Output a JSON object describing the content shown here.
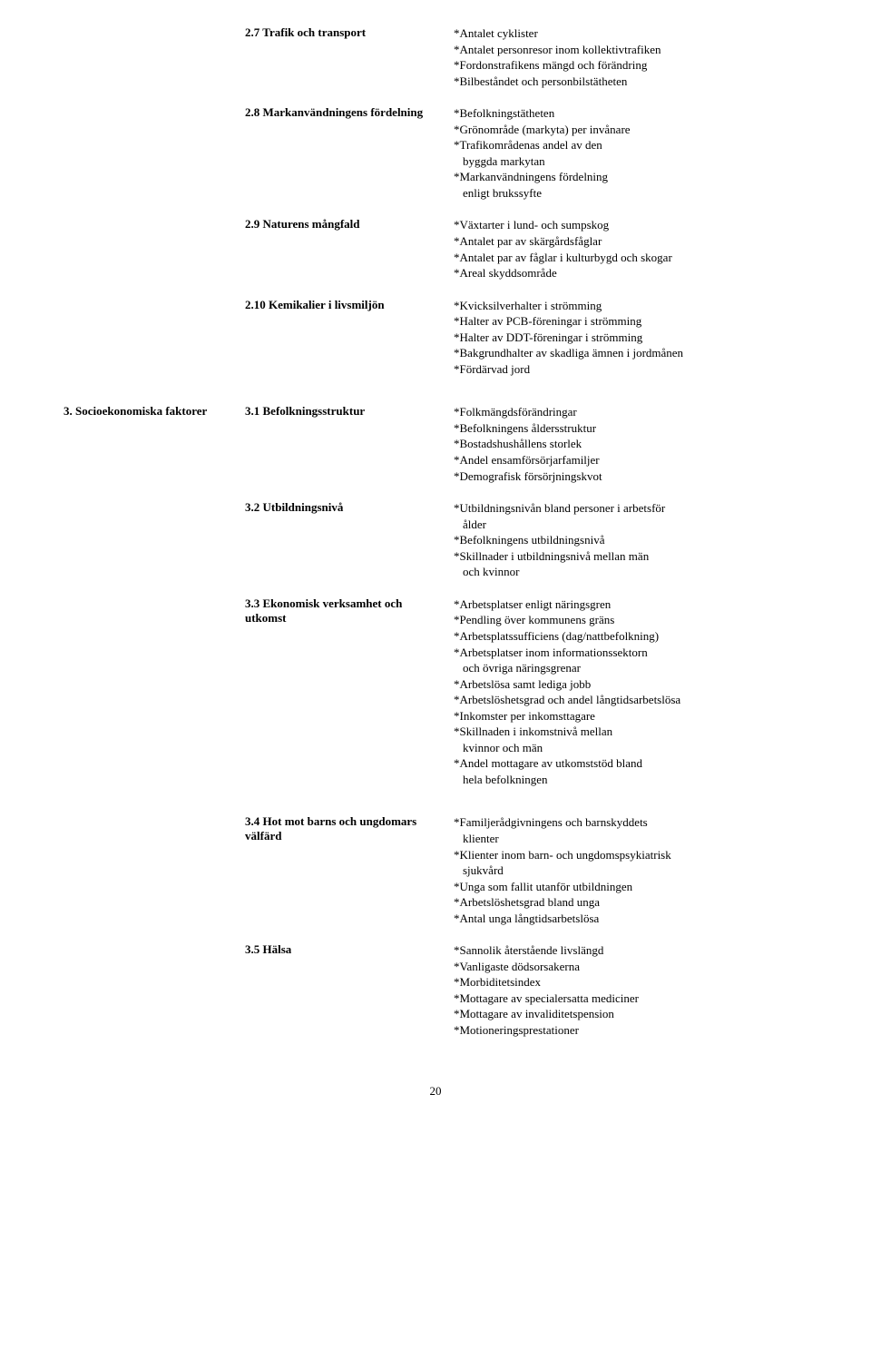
{
  "rows": [
    {
      "col1": "",
      "col2": "2.7 Trafik och transport",
      "items": [
        "*Antalet cyklister",
        "*Antalet personresor inom kollektivtrafiken",
        "*Fordonstrafikens mängd och förändring",
        "*Bilbeståndet och personbilstätheten"
      ]
    },
    {
      "col1": "",
      "col2": "2.8 Markanvändningens fördelning",
      "items": [
        "*Befolkningstätheten",
        "*Grönområde (markyta) per invånare",
        "*Trafikområdenas andel av den",
        "  byggda markytan",
        "*Markanvändningens fördelning",
        "  enligt brukssyfte"
      ]
    },
    {
      "col1": "",
      "col2": "2.9 Naturens mångfald",
      "items": [
        "*Växtarter i lund- och sumpskog",
        "*Antalet par av skärgårdsfåglar",
        "*Antalet par av fåglar i kulturbygd och skogar",
        "*Areal skyddsområde"
      ]
    },
    {
      "col1": "",
      "col2": "2.10 Kemikalier i livsmiljön",
      "items": [
        "*Kvicksilverhalter i strömming",
        "*Halter av PCB-föreningar i strömming",
        "*Halter av DDT-föreningar i strömming",
        "*Bakgrundhalter av skadliga ämnen i jordmånen",
        "*Fördärvad jord"
      ]
    },
    {
      "col1": "3. Socioekonomiska faktorer",
      "col2": "3.1 Befolkningsstruktur",
      "gap": true,
      "items": [
        "*Folkmängdsförändringar",
        "*Befolkningens åldersstruktur",
        "*Bostadshushållens storlek",
        "*Andel ensamförsörjarfamiljer",
        "*Demografisk försörjningskvot"
      ]
    },
    {
      "col1": "",
      "col2": "3.2 Utbildningsnivå",
      "items": [
        "*Utbildningsnivån bland personer i arbetsför",
        "  ålder",
        "*Befolkningens utbildningsnivå",
        "*Skillnader i utbildningsnivå mellan män",
        "  och kvinnor"
      ]
    },
    {
      "col1": "",
      "col2": "3.3 Ekonomisk verksamhet och utkomst",
      "items": [
        "*Arbetsplatser enligt näringsgren",
        "*Pendling över kommunens gräns",
        "*Arbetsplatssufficiens (dag/nattbefolkning)",
        "*Arbetsplatser inom informationssektorn",
        "  och övriga näringsgrenar",
        "*Arbetslösa samt lediga jobb",
        "*Arbetslöshetsgrad och andel långtidsarbetslösa",
        "*Inkomster per inkomsttagare",
        "*Skillnaden i inkomstnivå mellan",
        "  kvinnor och män",
        "*Andel mottagare av utkomststöd bland",
        "  hela befolkningen"
      ]
    },
    {
      "col1": "",
      "col2": "3.4 Hot mot barns och ungdomars välfärd",
      "gap": true,
      "items": [
        "*Familjerådgivningens och barnskyddets",
        "  klienter",
        "*Klienter inom barn- och ungdomspsykiatrisk",
        "  sjukvård",
        "*Unga som fallit utanför utbildningen",
        "*Arbetslöshetsgrad bland unga",
        "*Antal unga långtidsarbetslösa"
      ]
    },
    {
      "col1": "",
      "col2": "3.5 Hälsa",
      "items": [
        "*Sannolik återstående livslängd",
        "*Vanligaste dödsorsakerna",
        "*Morbiditetsindex",
        "*Mottagare av specialersatta mediciner",
        "*Mottagare av invaliditetspension",
        "*Motioneringsprestationer"
      ]
    }
  ],
  "pageNumber": "20"
}
